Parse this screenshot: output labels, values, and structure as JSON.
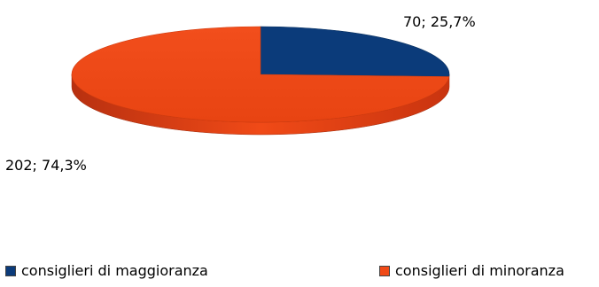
{
  "chart_data": {
    "type": "pie",
    "style": "3d",
    "slices": [
      {
        "label": "consiglieri di maggioranza",
        "value": 70,
        "percent": "25,7%",
        "data_label": "70; 25,7%",
        "color": "#0b3b7a"
      },
      {
        "label": "consiglieri di minoranza",
        "value": 202,
        "percent": "74,3%",
        "data_label": "202; 74,3%",
        "color": "#f04a17"
      }
    ],
    "legend_position": "bottom"
  }
}
